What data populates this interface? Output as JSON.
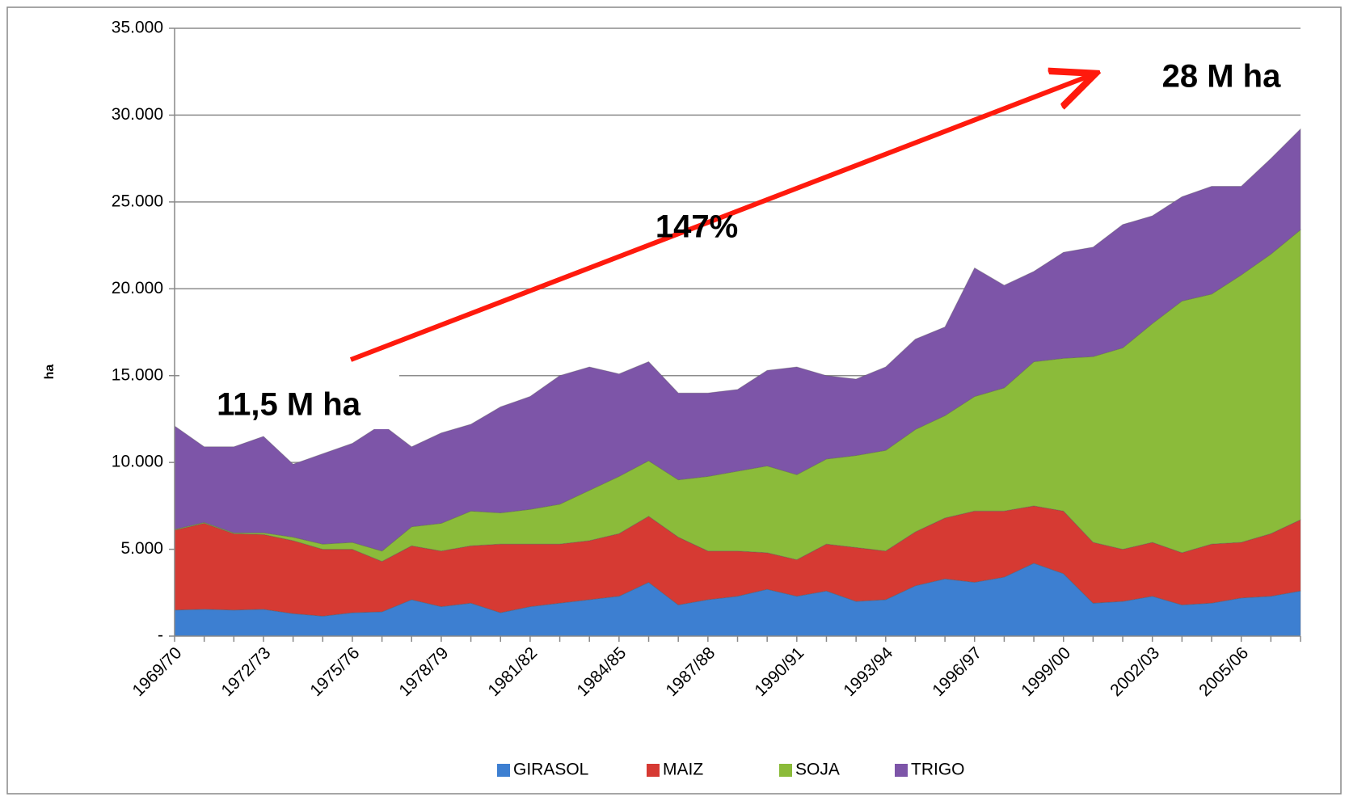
{
  "chart_data": {
    "type": "stacked-area",
    "y_label": "ha",
    "categories": [
      "1969/70",
      null,
      null,
      "1972/73",
      null,
      null,
      "1975/76",
      null,
      null,
      "1978/79",
      null,
      null,
      "1981/82",
      null,
      null,
      "1984/85",
      null,
      null,
      "1987/88",
      null,
      null,
      "1990/91",
      null,
      null,
      "1993/94",
      null,
      null,
      "1996/97",
      null,
      null,
      "1999/00",
      null,
      null,
      "2002/03",
      null,
      null,
      "2005/06",
      null,
      null
    ],
    "series": [
      {
        "name": "GIRASOL",
        "color": "#3d7fd1",
        "values": [
          1500,
          1550,
          1500,
          1550,
          1300,
          1150,
          1350,
          1400,
          2100,
          1700,
          1900,
          1350,
          1700,
          1900,
          2100,
          2300,
          3100,
          1800,
          2100,
          2300,
          2700,
          2300,
          2600,
          2000,
          2100,
          2900,
          3300,
          3100,
          3400,
          4200,
          3600,
          1900,
          2000,
          2300,
          1800,
          1900,
          2200,
          2300,
          2600
        ]
      },
      {
        "name": "MAIZ",
        "color": "#d63a33",
        "values": [
          4600,
          4950,
          4400,
          4300,
          4200,
          3850,
          3650,
          2900,
          3100,
          3200,
          3300,
          3950,
          3600,
          3400,
          3400,
          3600,
          3800,
          3900,
          2800,
          2600,
          2100,
          2100,
          2700,
          3100,
          2800,
          3100,
          3500,
          4100,
          3800,
          3300,
          3600,
          3500,
          3000,
          3100,
          3000,
          3400,
          3200,
          3600,
          4100
        ]
      },
      {
        "name": "SOJA",
        "color": "#8bbb3a",
        "values": [
          50,
          50,
          50,
          100,
          200,
          300,
          400,
          600,
          1100,
          1600,
          2000,
          1800,
          2000,
          2300,
          2900,
          3300,
          3200,
          3300,
          4300,
          4600,
          5000,
          4900,
          4900,
          5300,
          5800,
          5900,
          5900,
          6600,
          7100,
          8300,
          8800,
          10700,
          11600,
          12600,
          14500,
          14400,
          15400,
          16100,
          16700
        ]
      },
      {
        "name": "TRIGO",
        "color": "#7d55a8",
        "values": [
          5950,
          4350,
          4950,
          5550,
          4200,
          5200,
          5700,
          7300,
          4600,
          5200,
          5000,
          6100,
          6500,
          7400,
          7100,
          5900,
          5700,
          5000,
          4800,
          4700,
          5500,
          6200,
          4800,
          4400,
          4800,
          5200,
          5100,
          7400,
          5900,
          5200,
          6100,
          6300,
          7100,
          6200,
          6000,
          6200,
          5100,
          5500,
          5800
        ]
      }
    ],
    "ylim": [
      0,
      35000
    ],
    "yticks": [
      {
        "value": 0,
        "label": "-"
      },
      {
        "value": 5000,
        "label": "5.000"
      },
      {
        "value": 10000,
        "label": "10.000"
      },
      {
        "value": 15000,
        "label": "15.000"
      },
      {
        "value": 20000,
        "label": "20.000"
      },
      {
        "value": 25000,
        "label": "25.000"
      },
      {
        "value": 30000,
        "label": "30.000"
      },
      {
        "value": 35000,
        "label": "35.000"
      }
    ],
    "grid": true,
    "legend": "bottom",
    "annotations": [
      "11,5 M ha",
      "28 M ha",
      "147%"
    ]
  }
}
